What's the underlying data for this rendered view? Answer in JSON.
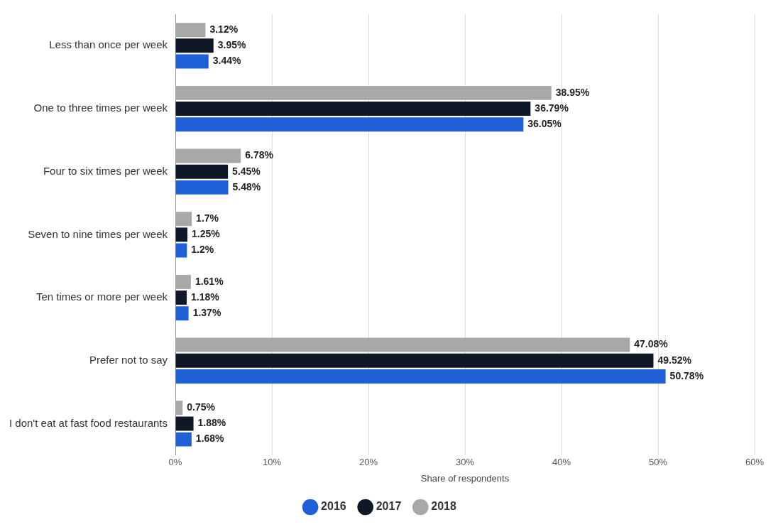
{
  "chart_data": {
    "type": "bar",
    "orientation": "horizontal",
    "xlabel": "Share of respondents",
    "categories": [
      "Less than once per week",
      "One to three times per week",
      "Four to six times per week",
      "Seven to nine times per week",
      "Ten times or more per week",
      "Prefer not to say",
      "I don't eat at fast food restaurants"
    ],
    "series": [
      {
        "name": "2018",
        "color": "#a8a8a8",
        "values": [
          3.12,
          38.95,
          6.78,
          1.7,
          1.61,
          47.08,
          0.75
        ],
        "value_labels": [
          "3.12%",
          "38.95%",
          "6.78%",
          "1.7%",
          "1.61%",
          "47.08%",
          "0.75%"
        ]
      },
      {
        "name": "2017",
        "color": "#101828",
        "values": [
          3.95,
          36.79,
          5.45,
          1.25,
          1.18,
          49.52,
          1.88
        ],
        "value_labels": [
          "3.95%",
          "36.79%",
          "5.45%",
          "1.25%",
          "1.18%",
          "49.52%",
          "1.88%"
        ]
      },
      {
        "name": "2016",
        "color": "#1f5fd8",
        "values": [
          3.44,
          36.05,
          5.48,
          1.2,
          1.37,
          50.78,
          1.68
        ],
        "value_labels": [
          "3.44%",
          "36.05%",
          "5.48%",
          "1.2%",
          "1.37%",
          "50.78%",
          "1.68%"
        ]
      }
    ],
    "xlim": [
      0,
      60
    ],
    "xticks": [
      {
        "value": 0,
        "label": "0%"
      },
      {
        "value": 10,
        "label": "10%"
      },
      {
        "value": 20,
        "label": "20%"
      },
      {
        "value": 30,
        "label": "30%"
      },
      {
        "value": 40,
        "label": "40%"
      },
      {
        "value": 50,
        "label": "50%"
      },
      {
        "value": 60,
        "label": "60%"
      }
    ],
    "grid": "x",
    "legend": "bottom"
  }
}
